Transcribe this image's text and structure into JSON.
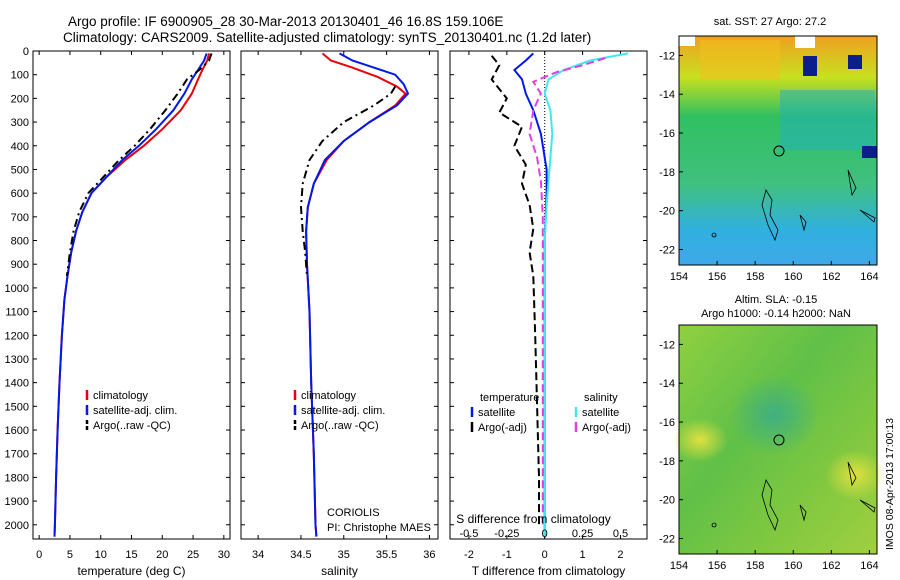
{
  "header": {
    "line1": "Argo profile: IF 6900905_28 30-Mar-2013 20130401_46 16.8S 159.106E",
    "line2": "Climatology: CARS2009. Satellite-adjusted climatology: synTS_20130401.nc (1.2d later)"
  },
  "sst_panel": {
    "title": "sat. SST: 27 Argo: 27.2"
  },
  "sla_panel": {
    "title1": "Altim. SLA: -0.15",
    "title2": "Argo h1000: -0.14 h2000: NaN"
  },
  "vertical_stamp": "IMOS 08-Apr-2013 17:00:13",
  "coriolis": {
    "line1": "CORIOLIS",
    "line2": "PI: Christophe MAES"
  },
  "colors": {
    "red": "#e8000b",
    "blue": "#0019e8",
    "black": "#000000",
    "cyan": "#40e8f0",
    "magenta": "#e040e0"
  },
  "chart_data": [
    {
      "type": "line",
      "panel": "temperature",
      "xlabel": "temperature (deg C)",
      "ylabel": "",
      "xlim": [
        -1,
        31
      ],
      "ylim": [
        2060,
        0
      ],
      "xticks": [
        0,
        5,
        10,
        15,
        20,
        25,
        30
      ],
      "yticks": [
        0,
        100,
        200,
        300,
        400,
        500,
        600,
        700,
        800,
        900,
        1000,
        1100,
        1200,
        1300,
        1400,
        1500,
        1600,
        1700,
        1800,
        1900,
        2000
      ],
      "legend": [
        "climatology",
        "satellite-adj. clim.",
        "Argo(..raw -QC)"
      ],
      "series": [
        {
          "name": "climatology",
          "color": "red",
          "dash": "",
          "points": [
            [
              27.6,
              10
            ],
            [
              27.3,
              40
            ],
            [
              26.5,
              80
            ],
            [
              25.8,
              120
            ],
            [
              24.8,
              180
            ],
            [
              23,
              250
            ],
            [
              20,
              330
            ],
            [
              17,
              400
            ],
            [
              14,
              460
            ],
            [
              11,
              530
            ],
            [
              8.5,
              600
            ],
            [
              7,
              680
            ],
            [
              6,
              760
            ],
            [
              5.2,
              850
            ],
            [
              4.6,
              950
            ],
            [
              4.1,
              1050
            ],
            [
              3.7,
              1200
            ],
            [
              3.3,
              1400
            ],
            [
              3,
              1600
            ],
            [
              2.75,
              1800
            ],
            [
              2.55,
              2000
            ],
            [
              2.5,
              2050
            ]
          ]
        },
        {
          "name": "satellite-adj. clim.",
          "color": "blue",
          "dash": "",
          "points": [
            [
              27.2,
              10
            ],
            [
              26.8,
              40
            ],
            [
              25.8,
              80
            ],
            [
              24.8,
              120
            ],
            [
              23.6,
              180
            ],
            [
              21.8,
              250
            ],
            [
              19,
              330
            ],
            [
              16.2,
              400
            ],
            [
              13.5,
              460
            ],
            [
              11,
              530
            ],
            [
              8.5,
              600
            ],
            [
              7,
              680
            ],
            [
              6,
              760
            ],
            [
              5.2,
              850
            ],
            [
              4.6,
              950
            ],
            [
              4.1,
              1050
            ],
            [
              3.7,
              1200
            ],
            [
              3.3,
              1400
            ],
            [
              3,
              1600
            ],
            [
              2.75,
              1800
            ],
            [
              2.55,
              2000
            ],
            [
              2.5,
              2050
            ]
          ]
        },
        {
          "name": "Argo(..raw -QC)",
          "color": "black",
          "dash": "8,4,2,4",
          "points": [
            [
              28,
              10
            ],
            [
              27.6,
              40
            ],
            [
              26,
              80
            ],
            [
              24,
              120
            ],
            [
              22.5,
              180
            ],
            [
              20.5,
              250
            ],
            [
              18,
              330
            ],
            [
              15.5,
              400
            ],
            [
              13,
              460
            ],
            [
              10.5,
              530
            ],
            [
              8,
              600
            ],
            [
              6.5,
              680
            ],
            [
              5.6,
              760
            ],
            [
              5,
              850
            ],
            [
              4.5,
              950
            ]
          ]
        }
      ]
    },
    {
      "type": "line",
      "panel": "salinity",
      "xlabel": "salinity",
      "ylabel": "",
      "xlim": [
        33.8,
        36.1
      ],
      "ylim": [
        2060,
        0
      ],
      "xticks": [
        34,
        34.5,
        35,
        35.5,
        36
      ],
      "legend": [
        "climatology",
        "satellite-adj. clim.",
        "Argo(..raw -QC)"
      ],
      "series": [
        {
          "name": "climatology",
          "color": "red",
          "dash": "",
          "points": [
            [
              34.75,
              10
            ],
            [
              34.85,
              40
            ],
            [
              35.1,
              70
            ],
            [
              35.4,
              110
            ],
            [
              35.62,
              150
            ],
            [
              35.72,
              180
            ],
            [
              35.6,
              230
            ],
            [
              35.3,
              300
            ],
            [
              35,
              380
            ],
            [
              34.8,
              460
            ],
            [
              34.65,
              560
            ],
            [
              34.58,
              660
            ],
            [
              34.56,
              760
            ],
            [
              34.57,
              900
            ],
            [
              34.6,
              1100
            ],
            [
              34.62,
              1400
            ],
            [
              34.65,
              1700
            ],
            [
              34.67,
              2000
            ],
            [
              34.68,
              2050
            ]
          ]
        },
        {
          "name": "satellite-adj. clim.",
          "color": "blue",
          "dash": "",
          "points": [
            [
              34.95,
              10
            ],
            [
              35.1,
              40
            ],
            [
              35.35,
              70
            ],
            [
              35.6,
              100
            ],
            [
              35.7,
              140
            ],
            [
              35.75,
              180
            ],
            [
              35.62,
              230
            ],
            [
              35.3,
              300
            ],
            [
              35,
              380
            ],
            [
              34.78,
              460
            ],
            [
              34.65,
              560
            ],
            [
              34.58,
              660
            ],
            [
              34.56,
              760
            ],
            [
              34.57,
              900
            ],
            [
              34.6,
              1100
            ],
            [
              34.62,
              1400
            ],
            [
              34.65,
              1700
            ],
            [
              34.67,
              2000
            ],
            [
              34.68,
              2050
            ]
          ]
        },
        {
          "name": "Argo(..raw -QC)",
          "color": "black",
          "dash": "8,4,2,4",
          "points": [
            [
              35.6,
              150
            ],
            [
              35.55,
              180
            ],
            [
              35.35,
              230
            ],
            [
              35,
              300
            ],
            [
              34.75,
              380
            ],
            [
              34.6,
              460
            ],
            [
              34.52,
              560
            ],
            [
              34.5,
              660
            ],
            [
              34.52,
              760
            ],
            [
              34.55,
              850
            ],
            [
              34.57,
              950
            ]
          ]
        }
      ]
    },
    {
      "type": "line",
      "panel": "difference",
      "xlabel": "T difference from climatology",
      "xlabel2": "S difference from climatology",
      "xlim": [
        -2.5,
        2.7
      ],
      "ylim": [
        2060,
        0
      ],
      "xticks": [
        -2,
        -1,
        0,
        1,
        2
      ],
      "xticks_top": [
        -0.5,
        -0.25,
        0,
        0.25,
        0.5
      ],
      "legend_temperature": {
        "title": "temperature",
        "items": [
          "satellite",
          "Argo(-adj)"
        ]
      },
      "legend_salinity": {
        "title": "salinity",
        "items": [
          "satellite",
          "Argo(-adj)"
        ]
      },
      "series": [
        {
          "name": "temperature satellite",
          "color": "blue",
          "dash": "",
          "points": [
            [
              -0.3,
              10
            ],
            [
              -0.5,
              40
            ],
            [
              -0.8,
              80
            ],
            [
              -0.6,
              120
            ],
            [
              -0.5,
              180
            ],
            [
              -0.3,
              250
            ],
            [
              -0.1,
              350
            ],
            [
              0.05,
              500
            ],
            [
              0.05,
              600
            ],
            [
              0.0,
              800
            ],
            [
              0,
              1100
            ],
            [
              0,
              1500
            ],
            [
              0,
              2050
            ]
          ]
        },
        {
          "name": "temperature Argo(-adj)",
          "color": "black",
          "dash": "8,4",
          "points": [
            [
              -1.4,
              20
            ],
            [
              -1.2,
              60
            ],
            [
              -1.4,
              120
            ],
            [
              -1.0,
              200
            ],
            [
              -1.2,
              260
            ],
            [
              -0.6,
              320
            ],
            [
              -0.8,
              400
            ],
            [
              -0.5,
              480
            ],
            [
              -0.6,
              560
            ],
            [
              -0.4,
              650
            ],
            [
              -0.3,
              750
            ],
            [
              -0.4,
              850
            ],
            [
              -0.3,
              950
            ],
            [
              -0.25,
              1200
            ],
            [
              -0.2,
              1500
            ],
            [
              -0.15,
              1800
            ],
            [
              -0.15,
              2000
            ]
          ]
        },
        {
          "name": "salinity satellite",
          "color": "cyan",
          "dash": "",
          "points": [
            [
              2.2,
              10
            ],
            [
              1.2,
              40
            ],
            [
              0.5,
              80
            ],
            [
              0.1,
              120
            ],
            [
              0.0,
              180
            ],
            [
              0.15,
              250
            ],
            [
              0.2,
              350
            ],
            [
              0.15,
              450
            ],
            [
              0.1,
              550
            ],
            [
              0.05,
              650
            ],
            [
              0,
              800
            ],
            [
              0,
              1100
            ],
            [
              0,
              2050
            ]
          ]
        },
        {
          "name": "salinity Argo(-adj)",
          "color": "magenta",
          "dash": "8,4",
          "points": [
            [
              1.6,
              30
            ],
            [
              1.0,
              60
            ],
            [
              0.3,
              90
            ],
            [
              -0.3,
              130
            ],
            [
              -0.1,
              180
            ],
            [
              -0.3,
              250
            ],
            [
              -0.4,
              350
            ],
            [
              -0.2,
              450
            ],
            [
              -0.1,
              550
            ],
            [
              -0.05,
              700
            ],
            [
              -0.05,
              900
            ],
            [
              -0.05,
              1200
            ],
            [
              -0.05,
              1500
            ],
            [
              -0.05,
              1800
            ],
            [
              -0.05,
              2000
            ]
          ]
        }
      ]
    },
    {
      "type": "heatmap",
      "panel": "sst_map",
      "xticks": [
        154,
        156,
        158,
        160,
        162,
        164
      ],
      "yticks": [
        -12,
        -14,
        -16,
        -18,
        -20,
        -22
      ],
      "xlim": [
        154,
        164.4
      ],
      "ylim": [
        -22.8,
        -11
      ]
    },
    {
      "type": "heatmap",
      "panel": "sla_map",
      "xticks": [
        154,
        156,
        158,
        160,
        162,
        164
      ],
      "yticks": [
        -12,
        -14,
        -16,
        -18,
        -20,
        -22
      ],
      "xlim": [
        154,
        164.4
      ],
      "ylim": [
        -22.8,
        -11
      ]
    }
  ]
}
